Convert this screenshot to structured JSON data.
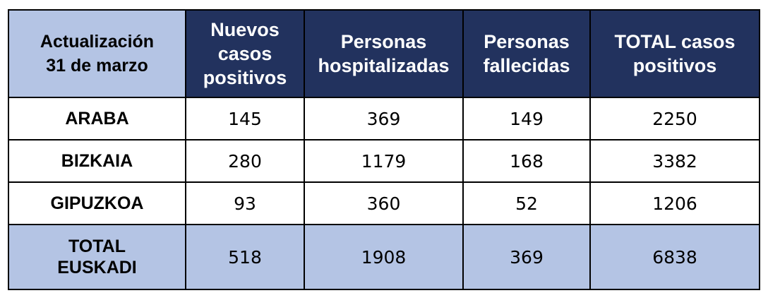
{
  "chart_data": {
    "type": "table",
    "corner_header": [
      "Actualización",
      "31 de marzo"
    ],
    "columns": [
      [
        "Nuevos",
        "casos",
        "positivos"
      ],
      [
        "Personas",
        "hospitalizadas"
      ],
      [
        "Personas",
        "fallecidas"
      ],
      [
        "TOTAL casos",
        "positivos"
      ]
    ],
    "rows": [
      {
        "label": [
          "ARABA"
        ],
        "values": [
          "145",
          "369",
          "149",
          "2250"
        ]
      },
      {
        "label": [
          "BIZKAIA"
        ],
        "values": [
          "280",
          "1179",
          "168",
          "3382"
        ]
      },
      {
        "label": [
          "GIPUZKOA"
        ],
        "values": [
          "93",
          "360",
          "52",
          "1206"
        ]
      },
      {
        "label": [
          "TOTAL",
          "EUSKADI"
        ],
        "values": [
          "518",
          "1908",
          "369",
          "6838"
        ]
      }
    ]
  },
  "colors": {
    "header_dark": "#22325e",
    "header_light": "#b4c4e4",
    "header_text": "#ffffff",
    "border": "#000000"
  }
}
